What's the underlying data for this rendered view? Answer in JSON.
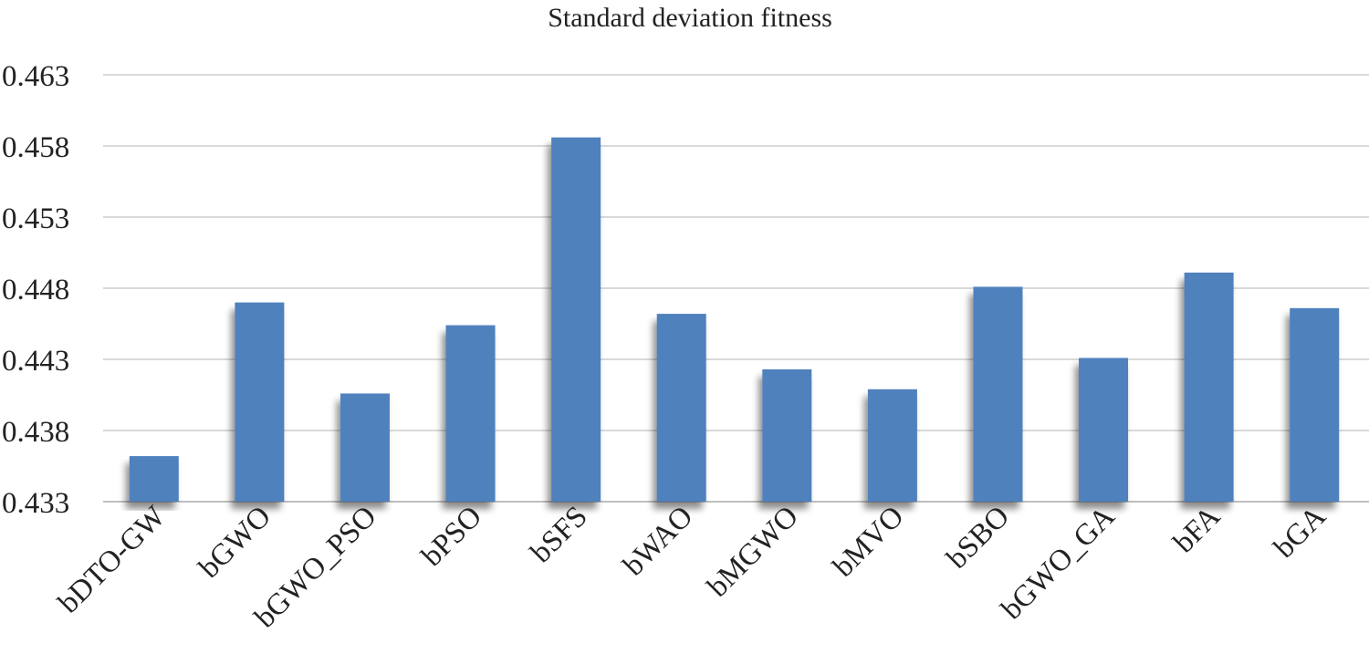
{
  "chart_data": {
    "type": "bar",
    "title": "Standard deviation fitness",
    "categories": [
      "bDTO-GW",
      "bGWO",
      "bGWO_PSO",
      "bPSO",
      "bSFS",
      "bWAO",
      "bMGWO",
      "bMVO",
      "bSBO",
      "bGWO_GA",
      "bFA",
      "bGA"
    ],
    "values": [
      0.4362,
      0.447,
      0.4406,
      0.4454,
      0.4586,
      0.4462,
      0.4423,
      0.4409,
      0.4481,
      0.4431,
      0.4491,
      0.4466
    ],
    "yticks": [
      "0.433",
      "0.438",
      "0.443",
      "0.448",
      "0.453",
      "0.458",
      "0.463"
    ],
    "ylim": [
      0.433,
      0.463
    ],
    "xlabel": "",
    "ylabel": "",
    "grid": true,
    "legend": "none",
    "bar_color": "#4f81bd"
  }
}
